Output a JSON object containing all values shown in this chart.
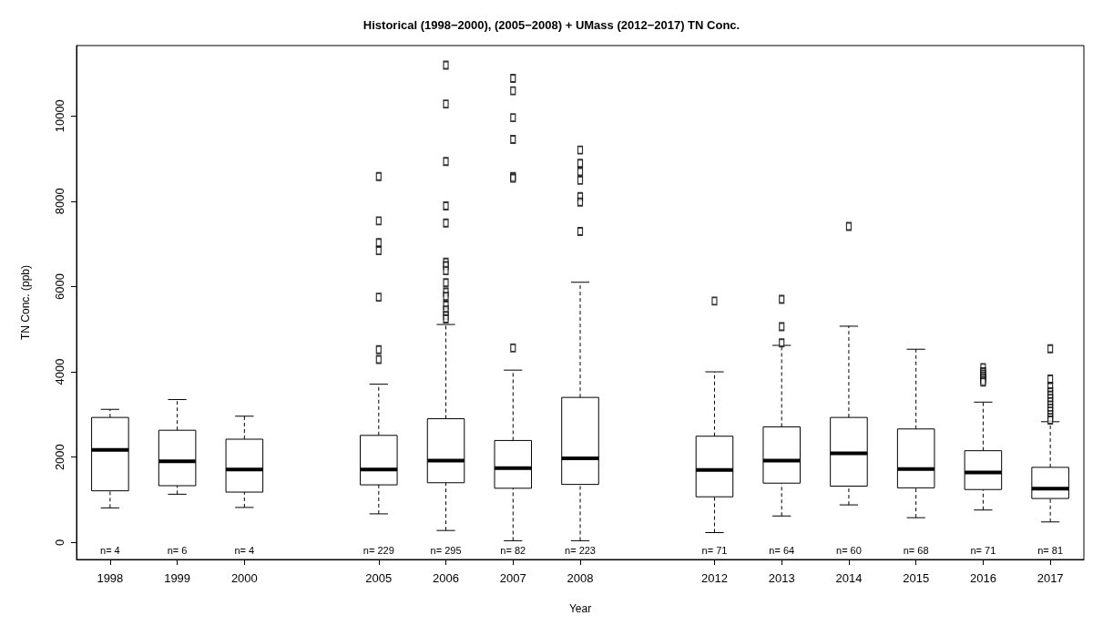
{
  "chart_data": {
    "type": "box",
    "title": "Historical (1998−2000), (2005−2008) + UMass (2012−2017) TN Conc.",
    "xlabel": "Year",
    "ylabel": "TN Conc. (ppb)",
    "categories": [
      "1998",
      "1999",
      "2000",
      null,
      "2005",
      "2006",
      "2007",
      "2008",
      null,
      "2012",
      "2013",
      "2014",
      "2015",
      "2016",
      "2017"
    ],
    "boxes": [
      {
        "low": 810,
        "q1": 1210,
        "median": 2170,
        "q3": 2930,
        "high": 3120
      },
      {
        "low": 1130,
        "q1": 1330,
        "median": 1900,
        "q3": 2630,
        "high": 3350
      },
      {
        "low": 820,
        "q1": 1180,
        "median": 1710,
        "q3": 2420,
        "high": 2960
      },
      null,
      {
        "low": 670,
        "q1": 1350,
        "median": 1710,
        "q3": 2510,
        "high": 3710,
        "outliers": [
          8580,
          7540,
          7030,
          6840,
          5750,
          4520,
          4290
        ]
      },
      {
        "low": 280,
        "q1": 1400,
        "median": 1920,
        "q3": 2900,
        "high": 5110,
        "outliers": [
          11190,
          10280,
          8930,
          7890,
          7490,
          6570,
          6490,
          6370,
          6090,
          5870,
          5770,
          5560,
          5450,
          5320,
          5240
        ]
      },
      {
        "low": 40,
        "q1": 1270,
        "median": 1740,
        "q3": 2390,
        "high": 4040,
        "outliers": [
          10880,
          10590,
          9960,
          9450,
          8580,
          8540,
          4560
        ]
      },
      {
        "low": 40,
        "q1": 1360,
        "median": 1970,
        "q3": 3400,
        "high": 6100,
        "outliers": [
          9200,
          8890,
          8690,
          8490,
          8110,
          7980,
          7290
        ]
      },
      null,
      {
        "low": 230,
        "q1": 1070,
        "median": 1700,
        "q3": 2490,
        "high": 4000,
        "outliers": [
          5660
        ]
      },
      {
        "low": 620,
        "q1": 1390,
        "median": 1920,
        "q3": 2710,
        "high": 4620,
        "outliers": [
          5700,
          5060,
          4680
        ]
      },
      {
        "low": 880,
        "q1": 1320,
        "median": 2090,
        "q3": 2930,
        "high": 5070,
        "outliers": [
          7410
        ]
      },
      {
        "low": 580,
        "q1": 1280,
        "median": 1720,
        "q3": 2660,
        "high": 4530
      },
      {
        "low": 760,
        "q1": 1240,
        "median": 1640,
        "q3": 2150,
        "high": 3290,
        "outliers": [
          4100,
          4000,
          3950,
          3900,
          3850,
          3800,
          3760
        ]
      },
      {
        "low": 480,
        "q1": 1030,
        "median": 1260,
        "q3": 1760,
        "high": 2830,
        "outliers": [
          4540,
          3830,
          3650,
          3530,
          3450,
          3380,
          3300,
          3220,
          3150,
          3080,
          3000,
          2930,
          2870
        ]
      }
    ],
    "ylim": [
      -400,
      11650
    ],
    "yticks": [
      0,
      2000,
      4000,
      6000,
      8000,
      10000
    ],
    "grid": false,
    "marker": "square",
    "annotations": [
      "n= 4",
      "n= 6",
      "n= 4",
      "n= 229",
      "n= 295",
      "n= 82",
      "n= 223",
      "n= 71",
      "n= 64",
      "n= 60",
      "n= 68",
      "n= 71",
      "n= 81"
    ]
  }
}
